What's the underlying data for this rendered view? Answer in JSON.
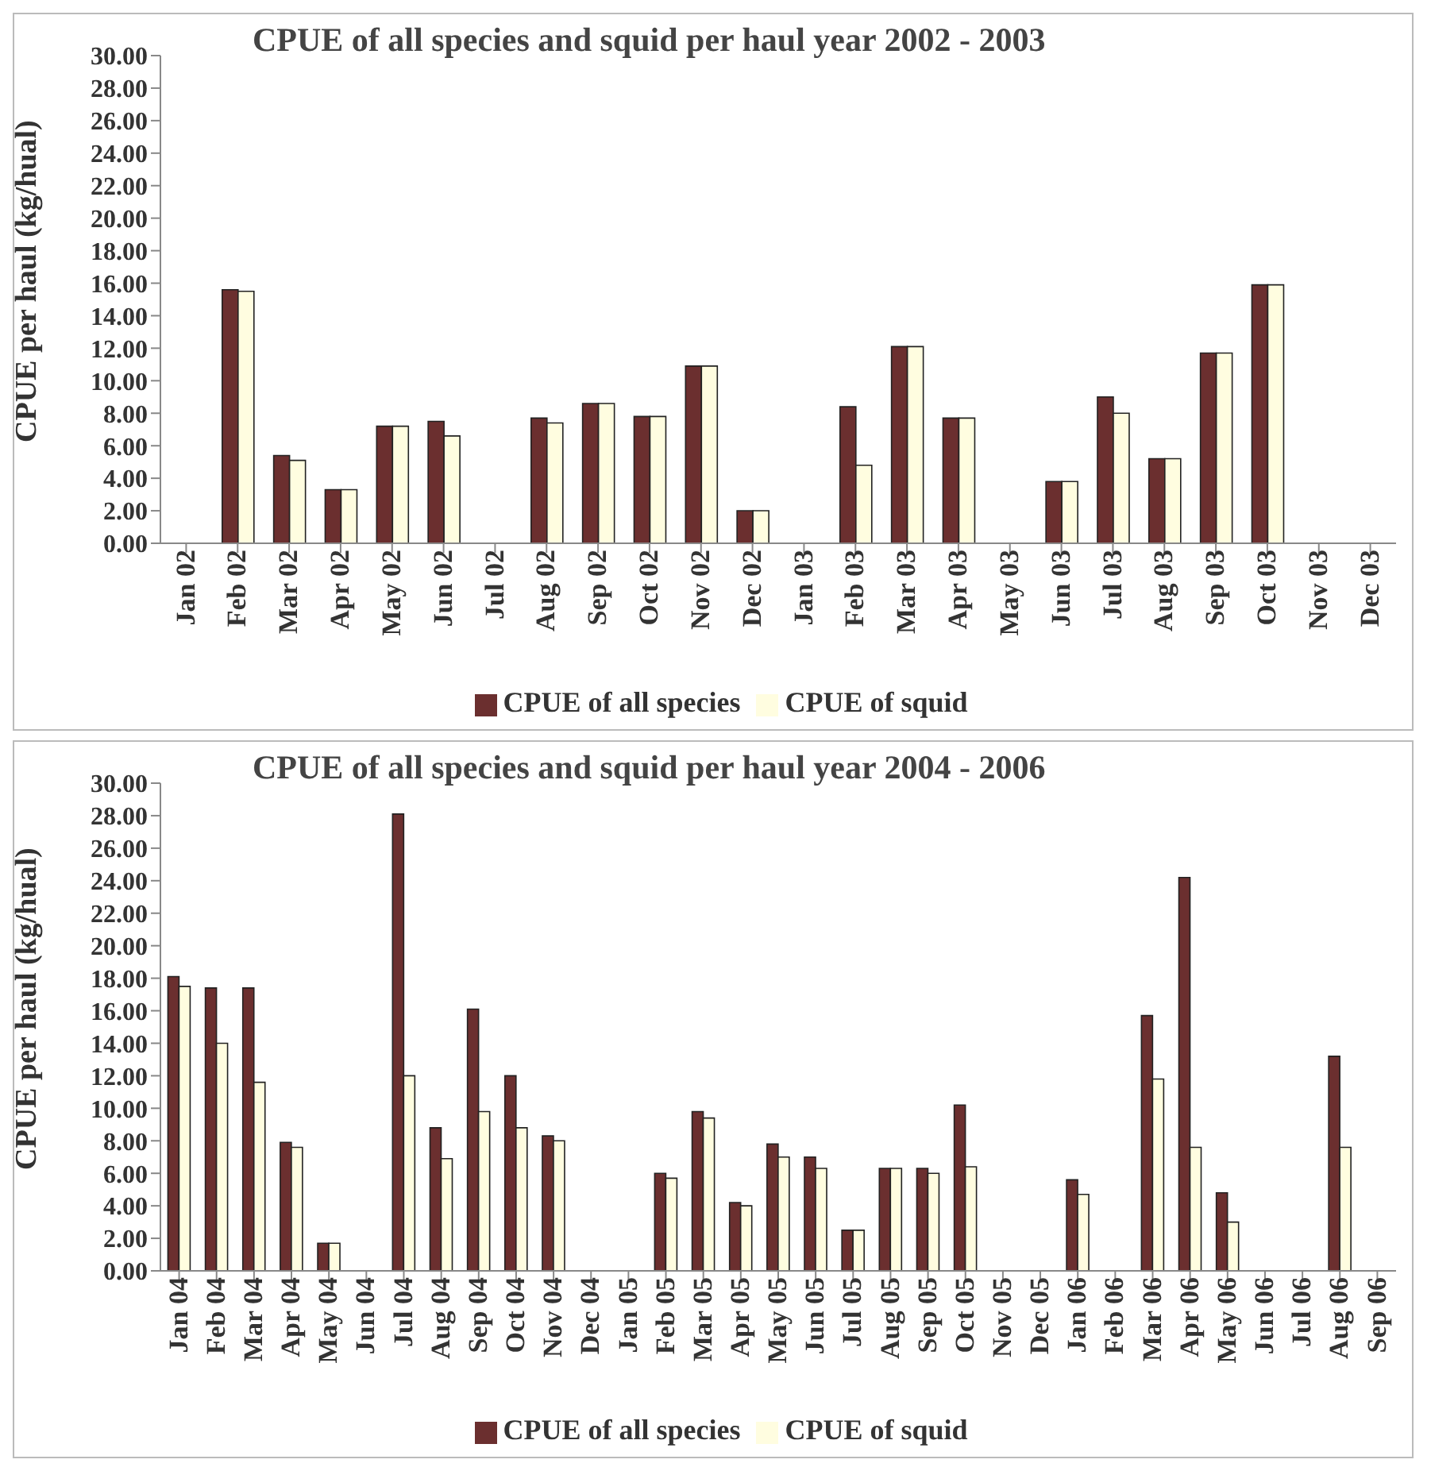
{
  "chart_data": [
    {
      "type": "bar",
      "title": "CPUE of all species and squid per haul year 2002 - 2003",
      "ylabel": "CPUE per haul (kg/hual)",
      "categories": [
        "Jan 02",
        "Feb 02",
        "Mar 02",
        "Apr 02",
        "May 02",
        "Jun 02",
        "Jul 02",
        "Aug 02",
        "Sep 02",
        "Oct 02",
        "Nov 02",
        "Dec 02",
        "Jan 03",
        "Feb 03",
        "Mar 03",
        "Apr 03",
        "May 03",
        "Jun 03",
        "Jul 03",
        "Aug 03",
        "Sep 03",
        "Oct 03",
        "Nov 03",
        "Dec 03"
      ],
      "series": [
        {
          "name": "CPUE of all species",
          "color": "#6b2f2f",
          "values": [
            null,
            15.6,
            5.4,
            3.3,
            7.2,
            7.5,
            null,
            7.7,
            8.6,
            7.8,
            10.9,
            2.0,
            null,
            8.4,
            12.1,
            7.7,
            null,
            3.8,
            9.0,
            5.2,
            11.7,
            15.9,
            null,
            null
          ]
        },
        {
          "name": "CPUE of squid",
          "color": "#fffde0",
          "values": [
            null,
            15.5,
            5.1,
            3.3,
            7.2,
            6.6,
            null,
            7.4,
            8.6,
            7.8,
            10.9,
            2.0,
            null,
            4.8,
            12.1,
            7.7,
            null,
            3.8,
            8.0,
            5.2,
            11.7,
            15.9,
            null,
            null
          ]
        }
      ],
      "ylim": [
        0,
        30
      ],
      "yticks": [
        {
          "value": 0,
          "label": "0.00"
        },
        {
          "value": 2,
          "label": "2.00"
        },
        {
          "value": 4,
          "label": "4.00"
        },
        {
          "value": 6,
          "label": "6.00"
        },
        {
          "value": 8,
          "label": "8.00"
        },
        {
          "value": 10,
          "label": "10.00"
        },
        {
          "value": 12,
          "label": "12.00"
        },
        {
          "value": 14,
          "label": "14.00"
        },
        {
          "value": 16,
          "label": "16.00"
        },
        {
          "value": 18,
          "label": "18.00"
        },
        {
          "value": 20,
          "label": "20.00"
        },
        {
          "value": 22,
          "label": "22.00"
        },
        {
          "value": 24,
          "label": "24.00"
        },
        {
          "value": 26,
          "label": "26.00"
        },
        {
          "value": 28,
          "label": "28.00"
        },
        {
          "value": 30,
          "label": "30.00"
        }
      ],
      "grid": false,
      "legend": "bottom"
    },
    {
      "type": "bar",
      "title": "CPUE of all species and squid per haul year 2004 - 2006",
      "ylabel": "CPUE per haul (kg/hual)",
      "categories": [
        "Jan 04",
        "Feb 04",
        "Mar 04",
        "Apr 04",
        "May 04",
        "Jun 04",
        "Jul 04",
        "Aug 04",
        "Sep 04",
        "Oct 04",
        "Nov 04",
        "Dec 04",
        "Jan 05",
        "Feb 05",
        "Mar 05",
        "Apr 05",
        "May 05",
        "Jun 05",
        "Jul 05",
        "Aug 05",
        "Sep 05",
        "Oct 05",
        "Nov 05",
        "Dec 05",
        "Jan 06",
        "Feb 06",
        "Mar 06",
        "Apr 06",
        "May 06",
        "Jun 06",
        "Jul 06",
        "Aug 06",
        "Sep 06"
      ],
      "series": [
        {
          "name": "CPUE of all species",
          "color": "#6b2f2f",
          "values": [
            18.1,
            17.4,
            17.4,
            7.9,
            1.7,
            null,
            28.1,
            8.8,
            16.1,
            12.0,
            8.3,
            null,
            null,
            6.0,
            9.8,
            4.2,
            7.8,
            7.0,
            2.5,
            6.3,
            6.3,
            10.2,
            null,
            null,
            5.6,
            null,
            15.7,
            24.2,
            4.8,
            null,
            null,
            13.2,
            null
          ]
        },
        {
          "name": "CPUE of squid",
          "color": "#fffde0",
          "values": [
            17.5,
            14.0,
            11.6,
            7.6,
            1.7,
            null,
            12.0,
            6.9,
            9.8,
            8.8,
            8.0,
            null,
            null,
            5.7,
            9.4,
            4.0,
            7.0,
            6.3,
            2.5,
            6.3,
            6.0,
            6.4,
            null,
            null,
            4.7,
            null,
            11.8,
            7.6,
            3.0,
            null,
            null,
            7.6,
            null
          ]
        }
      ],
      "ylim": [
        0,
        30
      ],
      "yticks": [
        {
          "value": 0,
          "label": "0.00"
        },
        {
          "value": 2,
          "label": "2.00"
        },
        {
          "value": 4,
          "label": "4.00"
        },
        {
          "value": 6,
          "label": "6.00"
        },
        {
          "value": 8,
          "label": "8.00"
        },
        {
          "value": 10,
          "label": "10.00"
        },
        {
          "value": 12,
          "label": "12.00"
        },
        {
          "value": 14,
          "label": "14.00"
        },
        {
          "value": 16,
          "label": "16.00"
        },
        {
          "value": 18,
          "label": "18.00"
        },
        {
          "value": 20,
          "label": "20.00"
        },
        {
          "value": 22,
          "label": "22.00"
        },
        {
          "value": 24,
          "label": "24.00"
        },
        {
          "value": 26,
          "label": "26.00"
        },
        {
          "value": 28,
          "label": "28.00"
        },
        {
          "value": 30,
          "label": "30.00"
        }
      ],
      "grid": false,
      "legend": "bottom"
    }
  ]
}
